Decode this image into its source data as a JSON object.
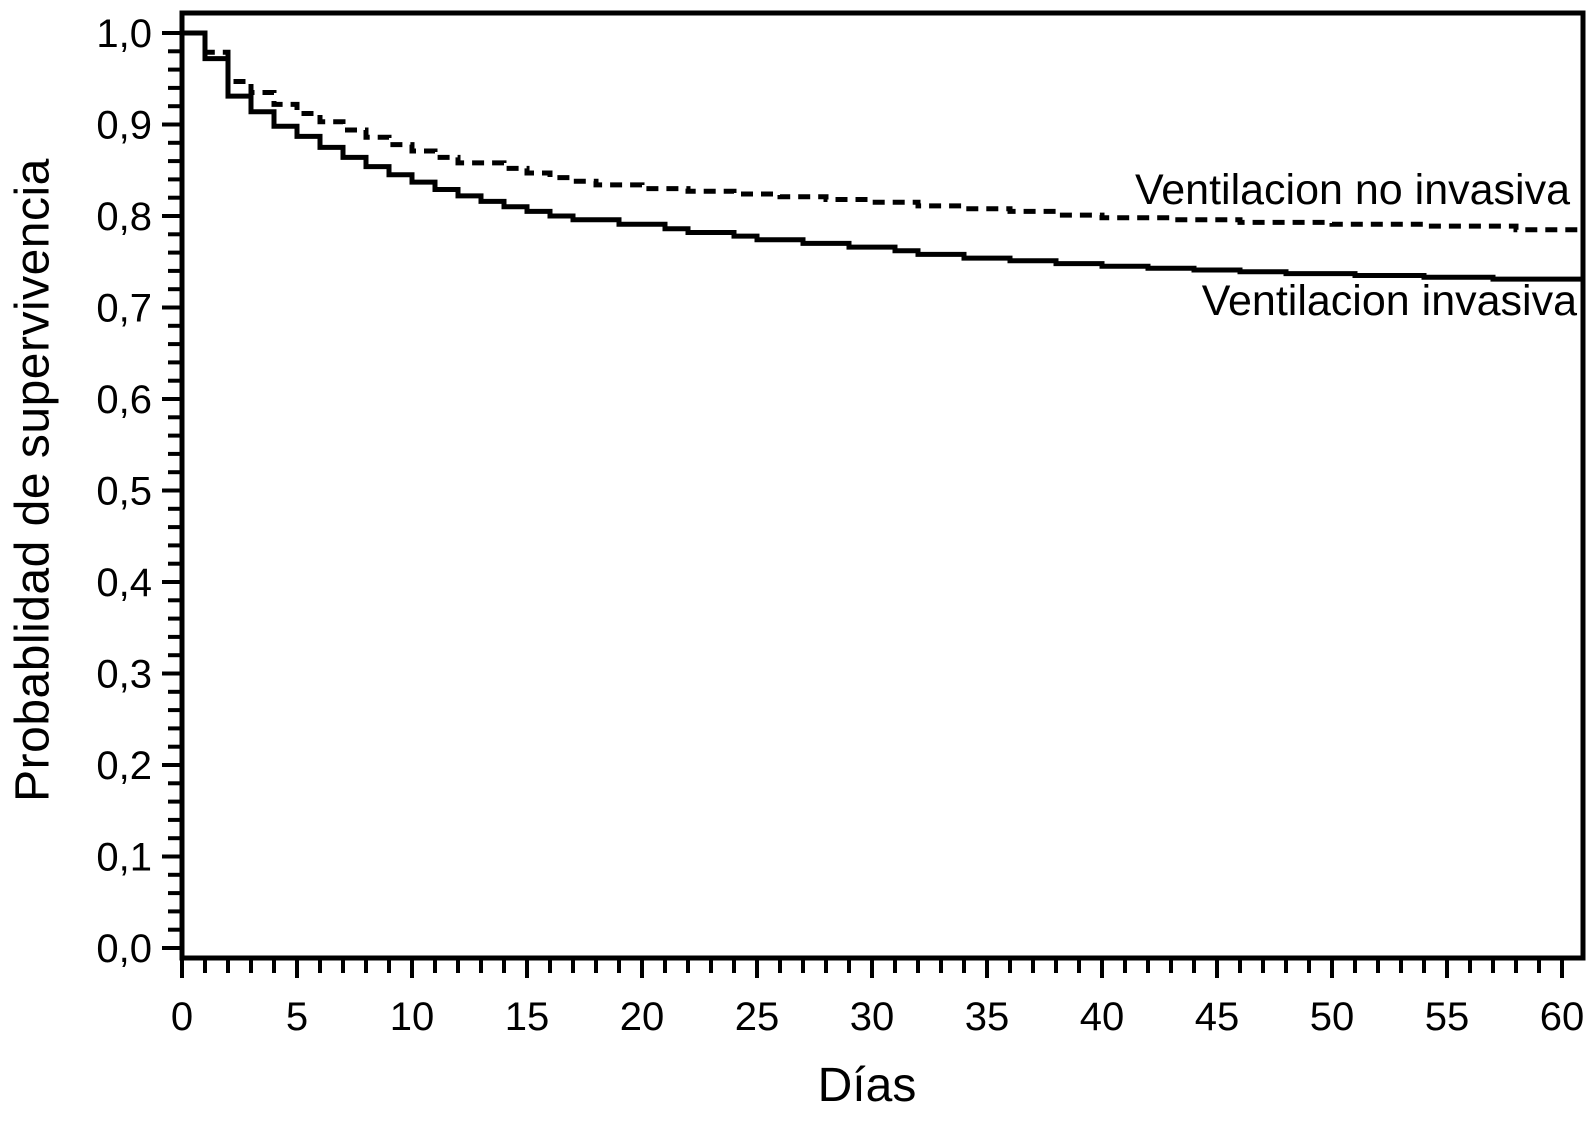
{
  "colors": {
    "foreground": "#000000",
    "background": "#ffffff"
  },
  "chart_data": {
    "type": "line",
    "subtype": "kaplan-meier-step-survival",
    "title": "",
    "xlabel": "Días",
    "ylabel": "Probablidad de supervivencia",
    "xlim": [
      0,
      60.9
    ],
    "ylim": [
      0.0,
      1.0
    ],
    "grid": false,
    "frame": true,
    "x_major_ticks": [
      0,
      5,
      10,
      15,
      20,
      25,
      30,
      35,
      40,
      45,
      50,
      55,
      60
    ],
    "x_tick_labels": [
      "0",
      "5",
      "10",
      "15",
      "20",
      "25",
      "30",
      "35",
      "40",
      "45",
      "50",
      "55",
      "60"
    ],
    "x_minor_tick_step": 1,
    "y_major_ticks": [
      0.0,
      0.1,
      0.2,
      0.3,
      0.4,
      0.5,
      0.6,
      0.7,
      0.8,
      0.9,
      1.0
    ],
    "y_tick_labels": [
      "0,0",
      "0,1",
      "0,2",
      "0,3",
      "0,4",
      "0,5",
      "0,6",
      "0,7",
      "0,8",
      "0,9",
      "1,0"
    ],
    "y_minor_tick_step": 0.02,
    "legend_position": "inline-annotations-right",
    "series": [
      {
        "name": "Ventilacion no invasiva",
        "style": "dashed",
        "color": "#000000",
        "steps": [
          [
            0,
            1.0
          ],
          [
            1,
            0.979
          ],
          [
            2,
            0.947
          ],
          [
            3,
            0.935
          ],
          [
            4,
            0.922
          ],
          [
            5,
            0.912
          ],
          [
            6,
            0.903
          ],
          [
            7,
            0.894
          ],
          [
            8,
            0.886
          ],
          [
            9,
            0.878
          ],
          [
            10,
            0.871
          ],
          [
            11,
            0.864
          ],
          [
            12,
            0.858
          ],
          [
            14,
            0.852
          ],
          [
            15,
            0.847
          ],
          [
            16,
            0.842
          ],
          [
            17,
            0.838
          ],
          [
            18,
            0.834
          ],
          [
            20,
            0.83
          ],
          [
            22,
            0.827
          ],
          [
            24,
            0.824
          ],
          [
            26,
            0.821
          ],
          [
            28,
            0.818
          ],
          [
            30,
            0.815
          ],
          [
            32,
            0.811
          ],
          [
            34,
            0.808
          ],
          [
            36,
            0.805
          ],
          [
            38,
            0.801
          ],
          [
            40,
            0.798
          ],
          [
            43,
            0.796
          ],
          [
            46,
            0.793
          ],
          [
            50,
            0.791
          ],
          [
            54,
            0.789
          ],
          [
            58,
            0.785
          ],
          [
            60,
            0.785
          ]
        ]
      },
      {
        "name": "Ventilacion invasiva",
        "style": "solid",
        "color": "#000000",
        "steps": [
          [
            0,
            1.0
          ],
          [
            1,
            0.972
          ],
          [
            2,
            0.931
          ],
          [
            3,
            0.914
          ],
          [
            4,
            0.898
          ],
          [
            5,
            0.887
          ],
          [
            6,
            0.875
          ],
          [
            7,
            0.864
          ],
          [
            8,
            0.854
          ],
          [
            9,
            0.845
          ],
          [
            10,
            0.837
          ],
          [
            11,
            0.829
          ],
          [
            12,
            0.822
          ],
          [
            13,
            0.816
          ],
          [
            14,
            0.81
          ],
          [
            15,
            0.805
          ],
          [
            16,
            0.8
          ],
          [
            17,
            0.796
          ],
          [
            19,
            0.791
          ],
          [
            21,
            0.786
          ],
          [
            22,
            0.782
          ],
          [
            24,
            0.778
          ],
          [
            25,
            0.774
          ],
          [
            27,
            0.77
          ],
          [
            29,
            0.766
          ],
          [
            31,
            0.762
          ],
          [
            32,
            0.758
          ],
          [
            34,
            0.754
          ],
          [
            36,
            0.751
          ],
          [
            38,
            0.748
          ],
          [
            40,
            0.745
          ],
          [
            42,
            0.743
          ],
          [
            44,
            0.741
          ],
          [
            46,
            0.739
          ],
          [
            48,
            0.737
          ],
          [
            51,
            0.735
          ],
          [
            54,
            0.733
          ],
          [
            57,
            0.731
          ],
          [
            60,
            0.731
          ]
        ]
      }
    ]
  }
}
